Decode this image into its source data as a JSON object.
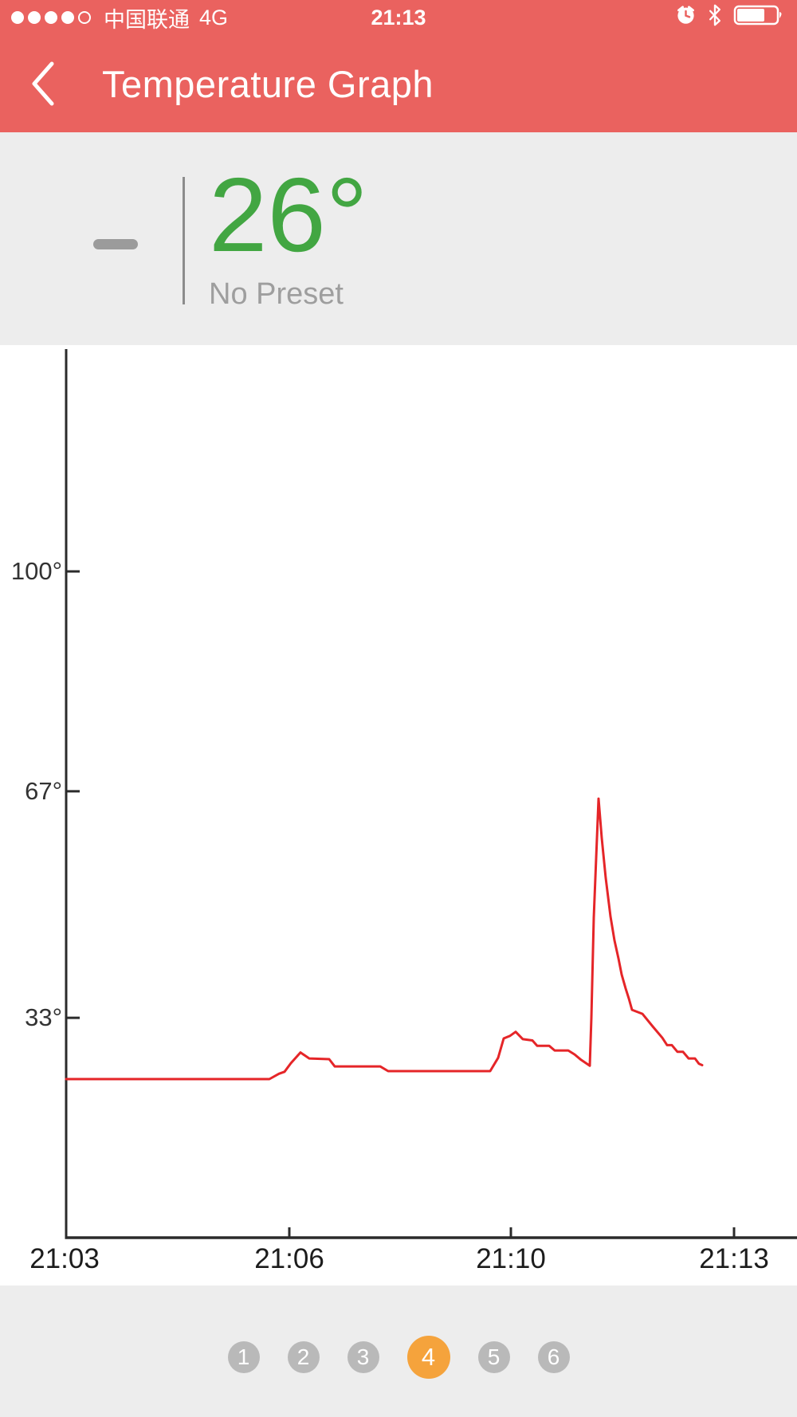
{
  "colors": {
    "nav_red": "#ea625f",
    "panel_gray": "#ededed",
    "temp_green": "#42a642",
    "line_red": "#e52528",
    "axis_dark": "#2b2b2b",
    "dot_gray": "#b9b9b9",
    "active_orange": "#f5a33c",
    "muted_gray": "#9e9e9e"
  },
  "status_bar": {
    "carrier": "中国联通",
    "network": "4G",
    "time": "21:13",
    "signal": {
      "filled": 4,
      "total": 5
    },
    "battery_level": 0.7
  },
  "nav": {
    "title": "Temperature Graph"
  },
  "preset_panel": {
    "current_temp": "26°",
    "preset_status": "No Preset"
  },
  "chart_data": {
    "type": "line",
    "title": "Temperature Graph",
    "series_name": "Temperature",
    "unit": "°",
    "x_tick_labels": [
      "21:03",
      "21:06",
      "21:10",
      "21:13"
    ],
    "y_tick_labels": [
      "100°",
      "67°",
      "33°"
    ],
    "y_tick_values": [
      100,
      67,
      33
    ],
    "ylim": [
      0,
      133
    ],
    "grid": false,
    "legend": false,
    "point_format": "[x_px_on_time_axis, temp_deg]",
    "points": [
      [
        83,
        23.8
      ],
      [
        338,
        23.8
      ],
      [
        350,
        24.6
      ],
      [
        357,
        24.9
      ],
      [
        365,
        26.2
      ],
      [
        377,
        27.8
      ],
      [
        388,
        26.9
      ],
      [
        413,
        26.8
      ],
      [
        420,
        25.7
      ],
      [
        477,
        25.7
      ],
      [
        487,
        25.0
      ],
      [
        615,
        25.0
      ],
      [
        625,
        27.0
      ],
      [
        632,
        29.9
      ],
      [
        640,
        30.3
      ],
      [
        647,
        30.9
      ],
      [
        656,
        29.8
      ],
      [
        668,
        29.6
      ],
      [
        674,
        28.8
      ],
      [
        689,
        28.8
      ],
      [
        696,
        28.1
      ],
      [
        713,
        28.1
      ],
      [
        721,
        27.5
      ],
      [
        729,
        26.7
      ],
      [
        740,
        25.8
      ],
      [
        742,
        33.0
      ],
      [
        745,
        48.0
      ],
      [
        748,
        57.0
      ],
      [
        751,
        65.9
      ],
      [
        755,
        60.0
      ],
      [
        760,
        54.0
      ],
      [
        766,
        48.2
      ],
      [
        771,
        44.6
      ],
      [
        776,
        41.9
      ],
      [
        780,
        39.5
      ],
      [
        785,
        37.4
      ],
      [
        789,
        35.9
      ],
      [
        793,
        34.2
      ],
      [
        806,
        33.6
      ],
      [
        819,
        31.7
      ],
      [
        831,
        30.0
      ],
      [
        837,
        28.9
      ],
      [
        843,
        28.9
      ],
      [
        850,
        27.9
      ],
      [
        857,
        27.9
      ],
      [
        864,
        26.9
      ],
      [
        872,
        26.9
      ],
      [
        877,
        26.1
      ],
      [
        881,
        25.9
      ]
    ]
  },
  "pagination": {
    "items": [
      "1",
      "2",
      "3",
      "4",
      "5",
      "6"
    ],
    "active": "4"
  }
}
